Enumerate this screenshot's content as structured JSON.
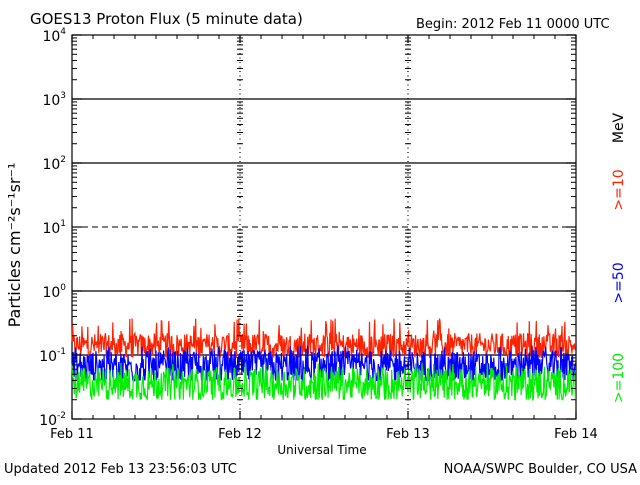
{
  "header": {
    "title": "GOES13 Proton Flux (5 minute data)",
    "begin": "Begin: 2012 Feb 11 0000 UTC"
  },
  "footer": {
    "updated": "Updated 2012 Feb 13 23:56:03 UTC",
    "credit": "NOAA/SWPC Boulder, CO USA"
  },
  "colors": {
    "ge10": "#ff2200",
    "ge50": "#0000ff",
    "ge100": "#00ee00",
    "axis": "#000000",
    "background": "#ffffff"
  },
  "chart_data": {
    "type": "line",
    "title": "GOES13 Proton Flux (5 minute data)",
    "xlabel": "Universal Time",
    "ylabel": "Particles cm⁻²s⁻¹sr⁻¹",
    "yscale": "log",
    "ylim": [
      0.01,
      10000
    ],
    "yticks": [
      {
        "base": "10",
        "exp": "4"
      },
      {
        "base": "10",
        "exp": "3"
      },
      {
        "base": "10",
        "exp": "2"
      },
      {
        "base": "10",
        "exp": "1"
      },
      {
        "base": "10",
        "exp": "0"
      },
      {
        "base": "10",
        "exp": "-1"
      },
      {
        "base": "10",
        "exp": "-2"
      }
    ],
    "x_days": [
      "Feb 11",
      "Feb 12",
      "Feb 13",
      "Feb 14"
    ],
    "xlim_hours": [
      0,
      72
    ],
    "energy_unit": "MeV",
    "grid": "solid lines at 10^3, 10^2, 10^0, 10^-1; dashed at 10^1",
    "series": [
      {
        "name": ">=10",
        "color": "#ff2200",
        "typical": 0.14,
        "min": 0.09,
        "max": 0.45
      },
      {
        "name": ">=50",
        "color": "#0000ff",
        "typical": 0.065,
        "min": 0.04,
        "max": 0.14
      },
      {
        "name": ">=100",
        "color": "#00ee00",
        "typical": 0.035,
        "min": 0.02,
        "max": 0.08
      }
    ]
  }
}
